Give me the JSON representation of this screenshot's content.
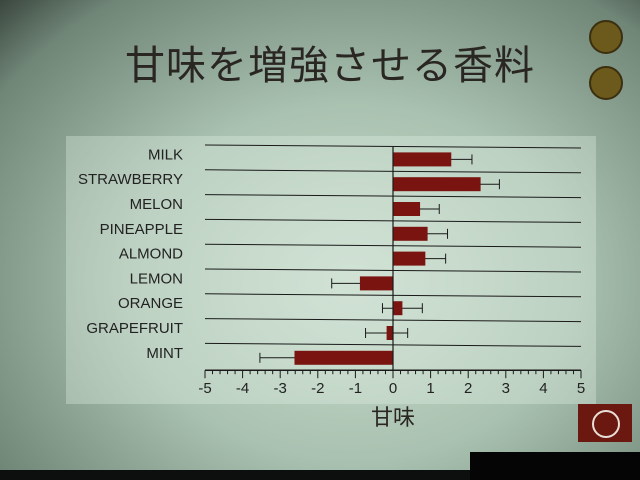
{
  "title": "甘味を増強させる香料",
  "colors": {
    "bar": "#7a1410",
    "line": "#1a1a1a"
  },
  "chart_data": {
    "type": "bar",
    "orientation": "horizontal",
    "categories": [
      "MILK",
      "STRAWBERRY",
      "MELON",
      "PINEAPPLE",
      "ALMOND",
      "LEMON",
      "ORANGE",
      "GRAPEFRUIT",
      "MINT"
    ],
    "values": [
      1.55,
      2.33,
      0.72,
      0.92,
      0.86,
      -0.88,
      0.25,
      -0.17,
      -2.62
    ],
    "errors": [
      0.55,
      0.5,
      0.51,
      0.53,
      0.54,
      0.75,
      0.53,
      0.56,
      0.92
    ],
    "xlabel": "甘味",
    "xlim": [
      -5,
      5
    ],
    "xticks": [
      "-5",
      "-4",
      "-3",
      "-2",
      "-1",
      "0",
      "1",
      "2",
      "3",
      "4",
      "5"
    ],
    "grid": "horizontal lines between categories",
    "legend": "none"
  }
}
